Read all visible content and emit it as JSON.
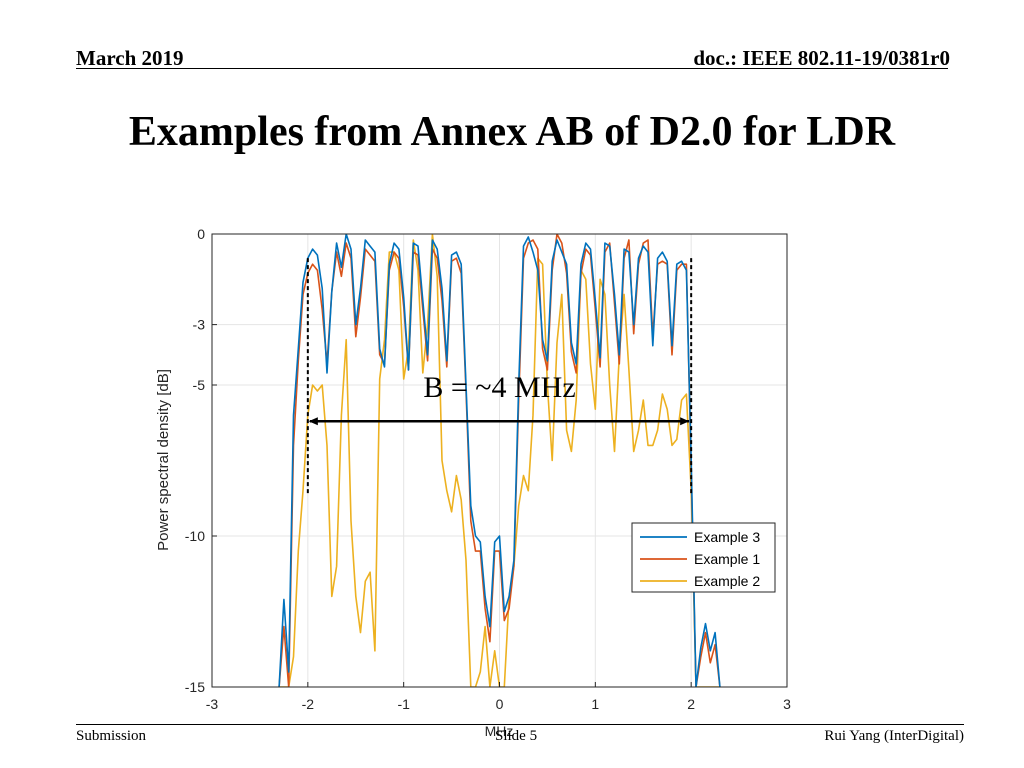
{
  "header": {
    "date": "March 2019",
    "doc_id": "doc.: IEEE 802.11-19/0381r0"
  },
  "slide_title": "Examples from Annex AB of D2.0 for LDR",
  "footer": {
    "left": "Submission",
    "center": "Slide 5",
    "right": "Rui Yang (InterDigital)"
  },
  "colors": {
    "example3": "#0072BD",
    "example1": "#D95319",
    "example2": "#EDB120"
  },
  "chart_data": {
    "type": "line",
    "xlabel": "MHz",
    "ylabel": "Power spectral density [dB]",
    "xlim": [
      -3,
      3
    ],
    "ylim": [
      -15,
      0
    ],
    "xticks": [
      -3,
      -2,
      -1,
      0,
      1,
      2,
      3
    ],
    "yticks": [
      -15,
      -10,
      -5,
      -3,
      0
    ],
    "grid": true,
    "legend_position": "lower-right",
    "annotation": {
      "text": "B = ~4 MHz",
      "x_start": -2,
      "x_end": 2,
      "y": -6.2
    },
    "bandwidth_markers": {
      "x": [
        -2,
        2
      ],
      "y_range": [
        -0.8,
        -8.6
      ]
    },
    "series": [
      {
        "name": "Example 3",
        "x": [
          -2.3,
          -2.25,
          -2.2,
          -2.15,
          -2.1,
          -2.05,
          -2.0,
          -1.95,
          -1.9,
          -1.85,
          -1.8,
          -1.75,
          -1.7,
          -1.65,
          -1.6,
          -1.55,
          -1.5,
          -1.45,
          -1.4,
          -1.35,
          -1.3,
          -1.25,
          -1.2,
          -1.15,
          -1.1,
          -1.05,
          -1.0,
          -0.95,
          -0.9,
          -0.85,
          -0.8,
          -0.75,
          -0.7,
          -0.65,
          -0.6,
          -0.55,
          -0.5,
          -0.45,
          -0.4,
          -0.35,
          -0.3,
          -0.25,
          -0.2,
          -0.15,
          -0.1,
          -0.05,
          0.0,
          0.05,
          0.1,
          0.15,
          0.2,
          0.25,
          0.3,
          0.35,
          0.4,
          0.45,
          0.5,
          0.55,
          0.6,
          0.65,
          0.7,
          0.75,
          0.8,
          0.85,
          0.9,
          0.95,
          1.0,
          1.05,
          1.1,
          1.15,
          1.2,
          1.25,
          1.3,
          1.35,
          1.4,
          1.45,
          1.5,
          1.55,
          1.6,
          1.65,
          1.7,
          1.75,
          1.8,
          1.85,
          1.9,
          1.95,
          2.0,
          2.05,
          2.1,
          2.15,
          2.2,
          2.25,
          2.3
        ],
        "y": [
          -15,
          -12.1,
          -14.5,
          -6.0,
          -3.8,
          -1.6,
          -0.8,
          -0.5,
          -0.7,
          -1.8,
          -4.6,
          -1.9,
          -0.3,
          -1.1,
          -0.0,
          -0.5,
          -3.0,
          -1.8,
          -0.2,
          -0.4,
          -0.6,
          -3.8,
          -4.4,
          -1.0,
          -0.3,
          -0.5,
          -2.1,
          -4.5,
          -0.3,
          -0.4,
          -2.2,
          -4.0,
          -0.2,
          -0.5,
          -1.8,
          -4.2,
          -0.7,
          -0.6,
          -1.0,
          -5.0,
          -9.0,
          -10.0,
          -10.2,
          -12.0,
          -13.0,
          -10.2,
          -10.0,
          -12.5,
          -12.0,
          -10.8,
          -5.0,
          -0.4,
          -0.1,
          -0.6,
          -1.2,
          -3.5,
          -4.2,
          -0.9,
          -0.2,
          -0.6,
          -1.0,
          -3.6,
          -4.3,
          -1.0,
          -0.3,
          -0.5,
          -2.2,
          -4.1,
          -0.3,
          -0.4,
          -2.0,
          -4.0,
          -0.5,
          -0.6,
          -3.0,
          -0.8,
          -0.4,
          -0.6,
          -3.7,
          -0.8,
          -0.6,
          -0.9,
          -3.7,
          -1.0,
          -0.9,
          -1.2,
          -7.5,
          -15,
          -13.7,
          -12.9,
          -13.8,
          -13.2,
          -15
        ]
      },
      {
        "name": "Example 1",
        "x": [
          -2.3,
          -2.25,
          -2.2,
          -2.15,
          -2.1,
          -2.05,
          -2.0,
          -1.95,
          -1.9,
          -1.85,
          -1.8,
          -1.75,
          -1.7,
          -1.65,
          -1.6,
          -1.55,
          -1.5,
          -1.45,
          -1.4,
          -1.35,
          -1.3,
          -1.25,
          -1.2,
          -1.15,
          -1.1,
          -1.05,
          -1.0,
          -0.95,
          -0.9,
          -0.85,
          -0.8,
          -0.75,
          -0.7,
          -0.65,
          -0.6,
          -0.55,
          -0.5,
          -0.45,
          -0.4,
          -0.35,
          -0.3,
          -0.25,
          -0.2,
          -0.15,
          -0.1,
          -0.05,
          0.0,
          0.05,
          0.1,
          0.15,
          0.2,
          0.25,
          0.3,
          0.35,
          0.4,
          0.45,
          0.5,
          0.55,
          0.6,
          0.65,
          0.7,
          0.75,
          0.8,
          0.85,
          0.9,
          0.95,
          1.0,
          1.05,
          1.1,
          1.15,
          1.2,
          1.25,
          1.3,
          1.35,
          1.4,
          1.45,
          1.5,
          1.55,
          1.6,
          1.65,
          1.7,
          1.75,
          1.8,
          1.85,
          1.9,
          1.95,
          2.0,
          2.05,
          2.1,
          2.15,
          2.2,
          2.25,
          2.3
        ],
        "y": [
          -15,
          -13.0,
          -15,
          -7.0,
          -4.2,
          -2.0,
          -1.3,
          -1.0,
          -1.2,
          -2.5,
          -4.3,
          -1.9,
          -0.6,
          -1.4,
          -0.3,
          -0.8,
          -3.4,
          -2.1,
          -0.5,
          -0.7,
          -0.9,
          -4.0,
          -4.3,
          -1.2,
          -0.6,
          -0.8,
          -2.4,
          -4.5,
          -0.6,
          -0.7,
          -2.5,
          -4.2,
          -0.5,
          -0.8,
          -2.2,
          -4.4,
          -0.9,
          -0.8,
          -1.3,
          -5.2,
          -9.5,
          -10.5,
          -10.5,
          -12.4,
          -13.5,
          -10.5,
          -10.5,
          -12.8,
          -12.4,
          -11.0,
          -5.5,
          -0.8,
          -0.3,
          -0.2,
          -0.5,
          -3.8,
          -4.5,
          -1.2,
          -0.0,
          -0.3,
          -1.3,
          -3.9,
          -4.6,
          -1.3,
          -0.5,
          -0.7,
          -2.5,
          -4.4,
          -0.6,
          -0.3,
          -2.3,
          -4.3,
          -0.8,
          -0.2,
          -3.3,
          -1.0,
          -0.3,
          -0.2,
          -3.4,
          -1.0,
          -0.9,
          -1.0,
          -4.0,
          -1.2,
          -1.0,
          -1.0,
          -7.9,
          -15,
          -14.0,
          -13.2,
          -14.2,
          -13.6,
          -15
        ]
      },
      {
        "name": "Example 2",
        "x": [
          -2.3,
          -2.25,
          -2.2,
          -2.15,
          -2.1,
          -2.05,
          -2.0,
          -1.95,
          -1.9,
          -1.85,
          -1.8,
          -1.75,
          -1.7,
          -1.65,
          -1.6,
          -1.55,
          -1.5,
          -1.45,
          -1.4,
          -1.35,
          -1.3,
          -1.25,
          -1.2,
          -1.15,
          -1.1,
          -1.05,
          -1.0,
          -0.95,
          -0.9,
          -0.85,
          -0.8,
          -0.75,
          -0.7,
          -0.65,
          -0.6,
          -0.55,
          -0.5,
          -0.45,
          -0.4,
          -0.35,
          -0.3,
          -0.25,
          -0.2,
          -0.15,
          -0.1,
          -0.05,
          0.0,
          0.05,
          0.1,
          0.15,
          0.2,
          0.25,
          0.3,
          0.35,
          0.4,
          0.45,
          0.5,
          0.55,
          0.6,
          0.65,
          0.7,
          0.75,
          0.8,
          0.85,
          0.9,
          0.95,
          1.0,
          1.05,
          1.1,
          1.15,
          1.2,
          1.25,
          1.3,
          1.35,
          1.4,
          1.45,
          1.5,
          1.55,
          1.6,
          1.65,
          1.7,
          1.75,
          1.8,
          1.85,
          1.9,
          1.95,
          2.0,
          2.05,
          2.1,
          2.15,
          2.2,
          2.25,
          2.3
        ],
        "y": [
          -15,
          -15,
          -15,
          -14.0,
          -10.5,
          -8.5,
          -6.0,
          -5.0,
          -5.2,
          -5.0,
          -7.0,
          -12.0,
          -11.0,
          -6.0,
          -3.5,
          -9.5,
          -12.0,
          -13.2,
          -11.5,
          -11.2,
          -13.8,
          -4.8,
          -3.5,
          -0.6,
          -0.6,
          -1.2,
          -4.8,
          -3.8,
          -0.2,
          -1.2,
          -4.6,
          -3.0,
          -0.0,
          -1.4,
          -7.5,
          -8.5,
          -9.2,
          -8.0,
          -8.8,
          -10.8,
          -15,
          -15,
          -14.5,
          -13.0,
          -15,
          -13.8,
          -15,
          -15,
          -12.0,
          -11.0,
          -9.0,
          -8.0,
          -8.5,
          -6.0,
          -0.8,
          -1.0,
          -5.0,
          -7.5,
          -3.6,
          -2.0,
          -6.5,
          -7.2,
          -5.5,
          -1.2,
          -1.5,
          -4.3,
          -5.8,
          -1.5,
          -2.0,
          -5.0,
          -7.2,
          -4.0,
          -2.0,
          -4.5,
          -7.2,
          -6.5,
          -5.5,
          -7.0,
          -7.0,
          -6.5,
          -5.3,
          -5.8,
          -7.0,
          -6.8,
          -5.5,
          -5.3,
          -8.5,
          -15,
          -15,
          -15,
          -15,
          -15,
          -15
        ]
      }
    ]
  }
}
